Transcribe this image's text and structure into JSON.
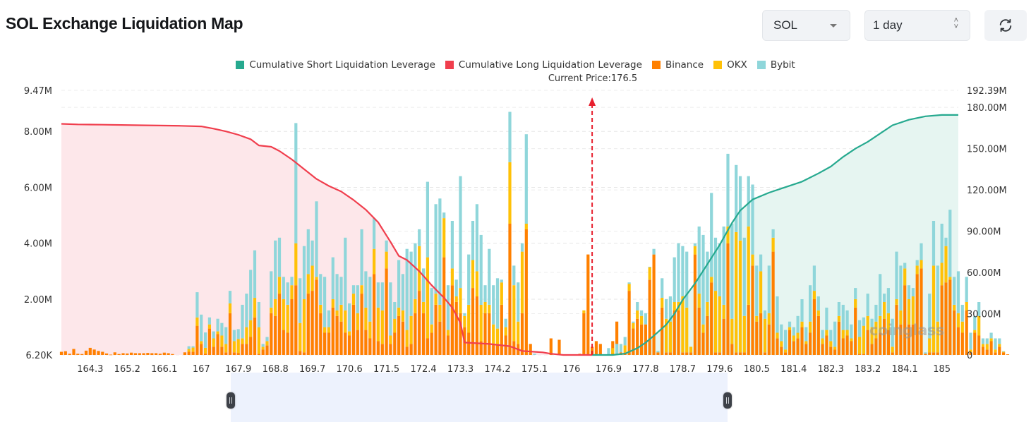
{
  "header": {
    "title": "SOL Exchange Liquidation Map",
    "symbol_select": {
      "value": "SOL"
    },
    "range_select": {
      "value": "1 day"
    },
    "refresh_icon": "refresh-icon"
  },
  "colors": {
    "short_cum": "#26a98f",
    "long_cum": "#f03e4d",
    "binance": "#ff8000",
    "okx": "#ffc107",
    "bybit": "#8fd6da",
    "short_fill": "#e6f5f1",
    "long_fill": "#fde7ea"
  },
  "chart_data": {
    "type": "bar",
    "title": "SOL Exchange Liquidation Map",
    "current_price_label": "Current Price:176.5",
    "current_price": 176.5,
    "legend": [
      "Cumulative Short Liquidation Leverage",
      "Cumulative Long Liquidation Leverage",
      "Binance",
      "OKX",
      "Bybit"
    ],
    "legend_position": "top-center",
    "x_ticks": [
      "164.3",
      "165.2",
      "166.1",
      "167",
      "167.9",
      "168.8",
      "169.7",
      "170.6",
      "171.5",
      "172.4",
      "173.3",
      "174.2",
      "175.1",
      "176",
      "176.9",
      "177.8",
      "178.7",
      "179.6",
      "180.5",
      "181.4",
      "182.3",
      "183.2",
      "184.1",
      "185"
    ],
    "x_range": [
      163.6,
      185.4
    ],
    "x_step": 0.1,
    "y_left": {
      "ticks": [
        "6.20K",
        "2.00M",
        "4.00M",
        "6.00M",
        "8.00M",
        "9.47M"
      ],
      "tick_values": [
        0.0062,
        2,
        4,
        6,
        8,
        9.47
      ],
      "range": [
        0.0062,
        9.47
      ],
      "unit": "M"
    },
    "y_right": {
      "ticks": [
        "0",
        "30.00M",
        "60.00M",
        "90.00M",
        "120.00M",
        "150.00M",
        "180.00M",
        "192.39M"
      ],
      "tick_values": [
        0,
        30,
        60,
        90,
        120,
        150,
        180,
        192.39
      ],
      "range": [
        0,
        192.39
      ],
      "unit": "M"
    },
    "grid": true,
    "series_bars_note": "stacked values in M per 0.1 price level: [Binance, OKX, Bybit]",
    "bars_long_side": [
      [
        0.12,
        0,
        0
      ],
      [
        0.14,
        0,
        0
      ],
      [
        0.05,
        0,
        0
      ],
      [
        0.22,
        0,
        0
      ],
      [
        0.05,
        0,
        0
      ],
      [
        0.04,
        0,
        0
      ],
      [
        0.16,
        0,
        0
      ],
      [
        0.26,
        0,
        0
      ],
      [
        0.2,
        0,
        0
      ],
      [
        0.15,
        0,
        0
      ],
      [
        0.12,
        0,
        0
      ],
      [
        0.06,
        0,
        0
      ],
      [
        0.02,
        0,
        0
      ],
      [
        0.1,
        0,
        0
      ],
      [
        0.04,
        0,
        0
      ],
      [
        0.07,
        0,
        0
      ],
      [
        0.06,
        0,
        0
      ],
      [
        0.09,
        0,
        0
      ],
      [
        0.07,
        0,
        0
      ],
      [
        0.07,
        0,
        0
      ],
      [
        0.07,
        0,
        0
      ],
      [
        0.08,
        0,
        0
      ],
      [
        0.07,
        0,
        0
      ],
      [
        0.07,
        0,
        0
      ],
      [
        0.05,
        0,
        0
      ],
      [
        0.09,
        0,
        0
      ],
      [
        0.07,
        0,
        0
      ],
      [
        0.04,
        0,
        0
      ],
      [
        0,
        0,
        0
      ],
      [
        0,
        0,
        0
      ],
      [
        0.1,
        0,
        0
      ],
      [
        0.12,
        0.1,
        0.1
      ],
      [
        0.12,
        0.15,
        0.05
      ],
      [
        1.05,
        0.3,
        0.9
      ],
      [
        0.4,
        0.1,
        0.95
      ],
      [
        0.06,
        0.2,
        0.55
      ],
      [
        0.95,
        0.15,
        0.25
      ],
      [
        0.3,
        0.3,
        0.25
      ],
      [
        0.75,
        0.1,
        0.45
      ],
      [
        0.3,
        0.4,
        0.45
      ],
      [
        0.1,
        0.3,
        0.6
      ],
      [
        1.5,
        0.35,
        0.45
      ],
      [
        0.1,
        0.4,
        0.4
      ],
      [
        0.08,
        0.5,
        0.35
      ],
      [
        0.4,
        0.2,
        1.2
      ],
      [
        0.4,
        0.6,
        1.2
      ],
      [
        0.65,
        0.6,
        1.8
      ],
      [
        1.35,
        0.7,
        1.7
      ],
      [
        0.05,
        0.95,
        0.9
      ],
      [
        0.2,
        0.1,
        0.1
      ],
      [
        0.35,
        0.15,
        0.15
      ],
      [
        1.5,
        0.2,
        1.3
      ],
      [
        1.4,
        0.6,
        2.1
      ],
      [
        2.2,
        0.6,
        1.4
      ],
      [
        0.9,
        1.1,
        0.8
      ],
      [
        0.8,
        1.0,
        0.8
      ],
      [
        2.0,
        0.5,
        0.3
      ],
      [
        2.5,
        1.5,
        4.3
      ],
      [
        0.15,
        1.0,
        1.6
      ],
      [
        0.1,
        1.9,
        1.9
      ],
      [
        2.2,
        0.7,
        1.6
      ],
      [
        2.3,
        0.9,
        0.9
      ],
      [
        2.7,
        0.1,
        2.7
      ],
      [
        1.5,
        0.3,
        1.1
      ],
      [
        0.8,
        0.2,
        1.8
      ],
      [
        0.8,
        0.2,
        0.6
      ],
      [
        1.7,
        0.3,
        1.5
      ],
      [
        1.4,
        0.2,
        1.3
      ],
      [
        1.2,
        0.6,
        1.0
      ],
      [
        0.8,
        0.8,
        2.6
      ],
      [
        0.7,
        0.15,
        1.0
      ],
      [
        1.8,
        0.4,
        0.3
      ],
      [
        0.9,
        0.6,
        1.0
      ],
      [
        2.2,
        0.3,
        2.0
      ],
      [
        0.9,
        0.8,
        1.3
      ],
      [
        0.6,
        0.6,
        1.6
      ],
      [
        2.9,
        0.9,
        1.1
      ],
      [
        0.5,
        1.2,
        0.9
      ],
      [
        0.4,
        1.2,
        1.0
      ],
      [
        3.1,
        0.6,
        0.4
      ],
      [
        0.4,
        0.3,
        1.9
      ],
      [
        0.8,
        0.5,
        0.6
      ],
      [
        1.4,
        0.3,
        1.7
      ],
      [
        1.2,
        0.4,
        1.3
      ],
      [
        0.3,
        0.6,
        2.9
      ],
      [
        0.4,
        1.0,
        2.3
      ],
      [
        1.5,
        0.5,
        2.0
      ],
      [
        2.3,
        1.6,
        0.6
      ],
      [
        1.5,
        0.4,
        1.2
      ],
      [
        0.6,
        2.9,
        2.7
      ],
      [
        0.8,
        0.3,
        1.3
      ],
      [
        1.8,
        0.4,
        3.2
      ],
      [
        1.2,
        0.6,
        3.8
      ],
      [
        3.5,
        1.4,
        0.2
      ],
      [
        0.7,
        0.2,
        1.6
      ],
      [
        2.5,
        0.6,
        1.7
      ],
      [
        1.9,
        0.2,
        0.6
      ],
      [
        1.5,
        0.9,
        4.0
      ],
      [
        1.0,
        0.4,
        0.1
      ],
      [
        0.8,
        1.0,
        1.8
      ],
      [
        2.4,
        1.0,
        1.4
      ],
      [
        2.1,
        0.9,
        2.4
      ],
      [
        0.5,
        1.3,
        2.5
      ],
      [
        1.5,
        0.4,
        0.6
      ],
      [
        1.5,
        0.3,
        2.0
      ],
      [
        0.4,
        0.7,
        1.4
      ],
      [
        0.35,
        0.6,
        1.8
      ],
      [
        1.8,
        0.8,
        0.1
      ],
      [
        0.7,
        0.3,
        0.3
      ],
      [
        4.7,
        2.2,
        1.8
      ],
      [
        0.5,
        2.0,
        0.7
      ],
      [
        0.4,
        0.8,
        1.4
      ],
      [
        1.5,
        2.2,
        0.3
      ],
      [
        4.5,
        0.2,
        3.2
      ],
      [
        0.4,
        0,
        0
      ],
      [
        0,
        0,
        0.05
      ],
      [
        0,
        0,
        0
      ],
      [
        0,
        0,
        0
      ],
      [
        0,
        0,
        0
      ],
      [
        0.6,
        0,
        0
      ],
      [
        0,
        0,
        0
      ],
      [
        0.55,
        0,
        0
      ],
      [
        0,
        0,
        0
      ],
      [
        0,
        0,
        0
      ],
      [
        0,
        0,
        0
      ],
      [
        0,
        0,
        0
      ],
      [
        0.05,
        0,
        0
      ],
      [
        1.5,
        0.1,
        0
      ],
      [
        3.6,
        0,
        0
      ],
      [
        0.3,
        0,
        0
      ],
      [
        0.5,
        0,
        0
      ],
      [
        0.4,
        0,
        0
      ],
      [
        0,
        0,
        0
      ],
      [
        0,
        0,
        0
      ],
      [
        0.5,
        0,
        0
      ],
      [
        1.2,
        0,
        0
      ],
      [
        0,
        0,
        0
      ],
      [
        0,
        0,
        0
      ],
      [
        0,
        0,
        0
      ],
      [
        1.1,
        0,
        0
      ],
      [
        0,
        0,
        0
      ],
      [
        0,
        0,
        0
      ],
      [
        0,
        0,
        0
      ],
      [
        0,
        0,
        0
      ],
      [
        0,
        0,
        0
      ],
      [
        0,
        0,
        0
      ],
      [
        0,
        0,
        0
      ],
      [
        0,
        0,
        0
      ],
      [
        0,
        0,
        0
      ]
    ],
    "bars_short_side": [
      [
        0,
        0,
        0
      ],
      [
        0,
        0,
        0
      ],
      [
        0,
        0,
        0
      ],
      [
        0,
        0,
        0
      ],
      [
        0,
        0,
        0.25
      ],
      [
        0.05,
        0.2,
        0
      ],
      [
        0.05,
        0,
        0.35
      ],
      [
        0.1,
        0,
        0.3
      ],
      [
        0.1,
        0.25,
        0.3
      ],
      [
        2.3,
        0.25,
        0.05
      ],
      [
        0.95,
        0.2,
        0.05
      ],
      [
        1.3,
        0.3,
        0.3
      ],
      [
        1.1,
        0.3,
        0.2
      ],
      [
        1.1,
        0,
        0.4
      ],
      [
        2.7,
        0.45,
        0.01
      ],
      [
        3.6,
        0,
        0.2
      ],
      [
        0.1,
        0,
        0.05
      ],
      [
        1.7,
        0.35,
        0.7
      ],
      [
        0.1,
        1.2,
        0.7
      ],
      [
        0.1,
        1.1,
        0.9
      ],
      [
        1.6,
        0.3,
        1.6
      ],
      [
        1.6,
        0.3,
        2.1
      ],
      [
        0.1,
        2.0,
        1.8
      ],
      [
        0.1,
        1.6,
        2.0
      ],
      [
        0.1,
        0.2,
        0
      ],
      [
        3.6,
        0.3,
        0.1
      ],
      [
        1.7,
        0.5,
        2.4
      ],
      [
        0.8,
        0.3,
        3.2
      ],
      [
        1.4,
        0.5,
        1.8
      ],
      [
        2.6,
        0.2,
        3.0
      ],
      [
        0.1,
        2.2,
        1.9
      ],
      [
        0.1,
        2.0,
        1.9
      ],
      [
        1.3,
        0.5,
        2.8
      ],
      [
        4.0,
        0.6,
        2.6
      ],
      [
        0.4,
        0.9,
        3.4
      ],
      [
        0.1,
        4.3,
        2.4
      ],
      [
        0.1,
        4.0,
        2.3
      ],
      [
        0.1,
        1.3,
        2.8
      ],
      [
        1.8,
        2.8,
        1.8
      ],
      [
        3.2,
        0.4,
        2.5
      ],
      [
        1.2,
        0.2,
        1.8
      ],
      [
        1.5,
        1.5,
        0.6
      ],
      [
        0.1,
        1.2,
        0.3
      ],
      [
        1.1,
        0.4,
        1.7
      ],
      [
        3.7,
        0.5,
        0.3
      ],
      [
        0.6,
        0.2,
        1.3
      ],
      [
        0.3,
        0.2,
        0.6
      ],
      [
        0.1,
        0.1,
        0.7
      ],
      [
        0.9,
        0.1,
        0.2
      ],
      [
        0.5,
        0.2,
        0.3
      ],
      [
        0.6,
        0.2,
        0.6
      ],
      [
        1.0,
        0.2,
        0.8
      ],
      [
        0.4,
        0.1,
        0.5
      ],
      [
        0.8,
        0.4,
        1.3
      ],
      [
        2.0,
        0.3,
        0.9
      ],
      [
        1.4,
        0.2,
        0.5
      ],
      [
        0.4,
        0.2,
        0.3
      ],
      [
        0.7,
        0.2,
        0.8
      ],
      [
        0.3,
        0.2,
        0.4
      ],
      [
        0.2,
        0.1,
        0.9
      ],
      [
        1.2,
        0.2,
        0.5
      ],
      [
        0.6,
        0.3,
        0.9
      ],
      [
        0.7,
        0.2,
        0.7
      ],
      [
        0.5,
        0.1,
        0.5
      ],
      [
        1.7,
        0.3,
        0.4
      ],
      [
        0.05,
        0.6,
        0.6
      ],
      [
        0.05,
        1.0,
        0.3
      ],
      [
        0.9,
        0.5,
        0.8
      ],
      [
        0.4,
        0.6,
        0.3
      ],
      [
        0.6,
        0.6,
        0.6
      ],
      [
        0.8,
        0.6,
        1.5
      ],
      [
        1.3,
        0.6,
        0.3
      ],
      [
        0.9,
        0.6,
        0.9
      ],
      [
        0.1,
        0.2,
        1.0
      ],
      [
        1.8,
        0.2,
        1.7
      ],
      [
        1.1,
        0.5,
        1.6
      ],
      [
        2.5,
        0.6,
        0.2
      ],
      [
        1.1,
        0.9,
        0.5
      ],
      [
        1.1,
        1.0,
        0.3
      ],
      [
        2.9,
        0.3,
        0.2
      ],
      [
        3.1,
        0.3,
        0.6
      ],
      [
        0.05,
        0,
        0.05
      ],
      [
        0.1,
        0.5,
        1.6
      ],
      [
        0.1,
        3.1,
        1.6
      ],
      [
        0.1,
        1.1,
        2.0
      ],
      [
        2.5,
        0.8,
        1.4
      ],
      [
        2.6,
        1.3,
        0.3
      ],
      [
        2.7,
        0.1,
        2.4
      ],
      [
        1.6,
        0.2,
        1.0
      ],
      [
        1.0,
        0.5,
        1.5
      ],
      [
        0.8,
        0.4,
        0.6
      ],
      [
        1.6,
        0.3,
        0.9
      ],
      [
        0.1,
        0.1,
        0.6
      ],
      [
        0.8,
        0.1,
        0.5
      ],
      [
        0.7,
        0.7,
        0.5
      ],
      [
        0.3,
        0.1,
        0.2
      ],
      [
        0.2,
        0.2,
        0.2
      ],
      [
        0.5,
        0.1,
        0.2
      ],
      [
        0.1,
        0.1,
        0.4
      ],
      [
        0.3,
        0.1,
        0.2
      ],
      [
        0.1,
        0.02,
        0.02
      ],
      [
        0.03,
        0,
        0
      ]
    ],
    "cum_long_M": [
      [
        163.6,
        8.27
      ],
      [
        164.0,
        8.25
      ],
      [
        164.6,
        8.24
      ],
      [
        165.5,
        8.22
      ],
      [
        166.5,
        8.2
      ],
      [
        167.0,
        8.18
      ],
      [
        167.3,
        8.1
      ],
      [
        167.6,
        8.0
      ],
      [
        167.9,
        7.88
      ],
      [
        168.2,
        7.72
      ],
      [
        168.4,
        7.5
      ],
      [
        168.7,
        7.45
      ],
      [
        168.9,
        7.3
      ],
      [
        169.2,
        7.0
      ],
      [
        169.5,
        6.65
      ],
      [
        169.8,
        6.3
      ],
      [
        170.1,
        6.05
      ],
      [
        170.4,
        5.85
      ],
      [
        170.7,
        5.55
      ],
      [
        171.0,
        5.2
      ],
      [
        171.3,
        4.75
      ],
      [
        171.6,
        4.05
      ],
      [
        171.8,
        3.55
      ],
      [
        172.0,
        3.4
      ],
      [
        172.3,
        3.0
      ],
      [
        172.6,
        2.5
      ],
      [
        172.9,
        2.05
      ],
      [
        173.1,
        1.7
      ],
      [
        173.3,
        1.15
      ],
      [
        173.4,
        0.45
      ],
      [
        174.0,
        0.4
      ],
      [
        174.5,
        0.32
      ],
      [
        174.8,
        0.15
      ],
      [
        175.3,
        0.1
      ],
      [
        175.5,
        0.05
      ],
      [
        175.8,
        0.0062
      ],
      [
        176.5,
        0.0062
      ]
    ],
    "cum_short_M": [
      [
        176.5,
        0
      ],
      [
        177.0,
        0
      ],
      [
        177.3,
        1
      ],
      [
        177.6,
        5
      ],
      [
        177.8,
        9
      ],
      [
        178.0,
        14
      ],
      [
        178.3,
        22
      ],
      [
        178.5,
        30
      ],
      [
        178.7,
        40
      ],
      [
        179.0,
        52
      ],
      [
        179.3,
        66
      ],
      [
        179.6,
        80
      ],
      [
        179.9,
        96
      ],
      [
        180.1,
        105
      ],
      [
        180.4,
        113
      ],
      [
        180.8,
        118
      ],
      [
        181.2,
        122
      ],
      [
        181.6,
        126
      ],
      [
        182.0,
        132
      ],
      [
        182.3,
        137
      ],
      [
        182.6,
        144
      ],
      [
        182.9,
        150
      ],
      [
        183.2,
        155
      ],
      [
        183.5,
        161
      ],
      [
        183.8,
        167
      ],
      [
        184.2,
        171
      ],
      [
        184.6,
        173.5
      ],
      [
        185.0,
        174.5
      ],
      [
        185.4,
        174.5
      ]
    ]
  },
  "watermark": "coinglass",
  "zoom_slider": {
    "start_handle": "range-start-handle",
    "end_handle": "range-end-handle"
  }
}
